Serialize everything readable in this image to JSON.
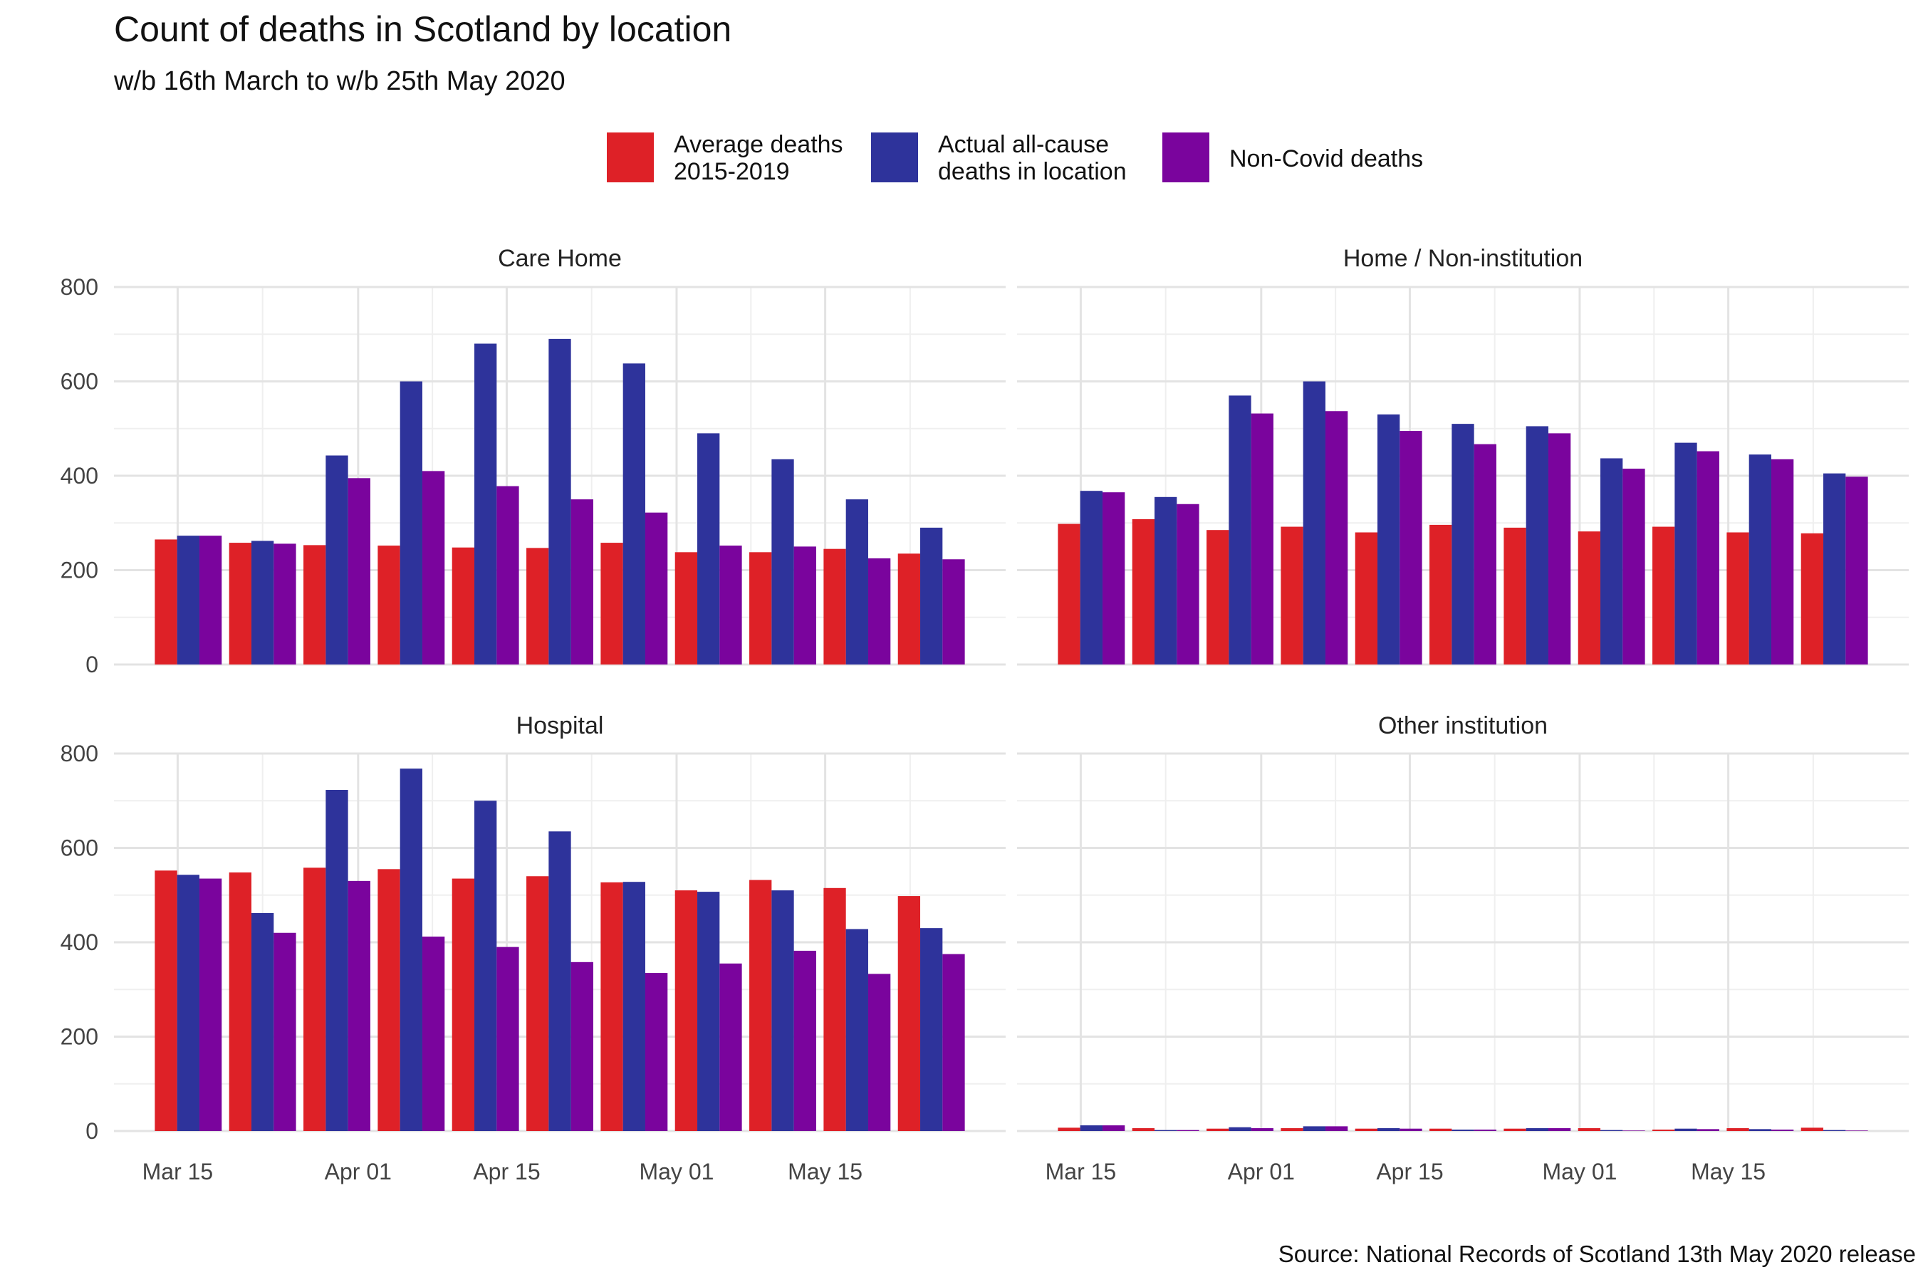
{
  "chart_data": {
    "type": "bar",
    "title": "Count of deaths in Scotland by location",
    "subtitle": "w/b 16th March to w/b 25th May 2020",
    "caption": "Source: National Records of Scotland 13th May 2020 release",
    "x": [
      "2020-03-16",
      "2020-03-23",
      "2020-03-30",
      "2020-04-06",
      "2020-04-13",
      "2020-04-20",
      "2020-04-27",
      "2020-05-04",
      "2020-05-11",
      "2020-05-18",
      "2020-05-25"
    ],
    "x_ticks": [
      "Mar 15",
      "Apr 01",
      "Apr 15",
      "May 01",
      "May 15"
    ],
    "y_ticks": [
      "0",
      "200",
      "400",
      "600",
      "800"
    ],
    "ylim": [
      0,
      800
    ],
    "grid": true,
    "legend_position": "top",
    "series_meta": [
      {
        "name": "Average deaths 2015-2019",
        "label_lines": [
          "Average deaths",
          "2015-2019"
        ],
        "color": "#de2127"
      },
      {
        "name": "Actual all-cause deaths in location",
        "label_lines": [
          "Actual all-cause",
          "deaths in location"
        ],
        "color": "#2e339b"
      },
      {
        "name": "Non-Covid deaths",
        "label_lines": [
          "Non-Covid deaths"
        ],
        "color": "#7a049d"
      }
    ],
    "facets": [
      {
        "name": "Care Home",
        "series": [
          {
            "name": "Average deaths 2015-2019",
            "values": [
              265,
              258,
              253,
              252,
              248,
              247,
              258,
              238,
              238,
              245,
              235
            ]
          },
          {
            "name": "Actual all-cause deaths in location",
            "values": [
              273,
              262,
              443,
              600,
              680,
              690,
              638,
              490,
              435,
              350,
              290
            ]
          },
          {
            "name": "Non-Covid deaths",
            "values": [
              273,
              256,
              395,
              410,
              378,
              350,
              322,
              252,
              250,
              225,
              223
            ]
          }
        ]
      },
      {
        "name": "Home / Non-institution",
        "series": [
          {
            "name": "Average deaths 2015-2019",
            "values": [
              298,
              308,
              285,
              292,
              280,
              296,
              290,
              282,
              292,
              280,
              278
            ]
          },
          {
            "name": "Actual all-cause deaths in location",
            "values": [
              368,
              355,
              570,
              600,
              530,
              510,
              505,
              437,
              470,
              445,
              405
            ]
          },
          {
            "name": "Non-Covid deaths",
            "values": [
              365,
              340,
              532,
              537,
              495,
              467,
              490,
              415,
              452,
              435,
              398
            ]
          }
        ]
      },
      {
        "name": "Hospital",
        "series": [
          {
            "name": "Average deaths 2015-2019",
            "values": [
              552,
              548,
              558,
              555,
              535,
              540,
              527,
              510,
              532,
              515,
              498
            ]
          },
          {
            "name": "Actual all-cause deaths in location",
            "values": [
              543,
              462,
              723,
              768,
              700,
              635,
              528,
              507,
              510,
              428,
              430
            ]
          },
          {
            "name": "Non-Covid deaths",
            "values": [
              535,
              420,
              530,
              412,
              390,
              358,
              335,
              355,
              382,
              333,
              375
            ]
          }
        ]
      },
      {
        "name": "Other institution",
        "series": [
          {
            "name": "Average deaths 2015-2019",
            "values": [
              7,
              6,
              5,
              6,
              5,
              5,
              5,
              6,
              3,
              6,
              7
            ]
          },
          {
            "name": "Actual all-cause deaths in location",
            "values": [
              12,
              2,
              8,
              10,
              6,
              3,
              6,
              2,
              5,
              4,
              2
            ]
          },
          {
            "name": "Non-Covid deaths",
            "values": [
              12,
              2,
              6,
              10,
              5,
              3,
              6,
              1,
              4,
              3,
              1
            ]
          }
        ]
      }
    ]
  }
}
